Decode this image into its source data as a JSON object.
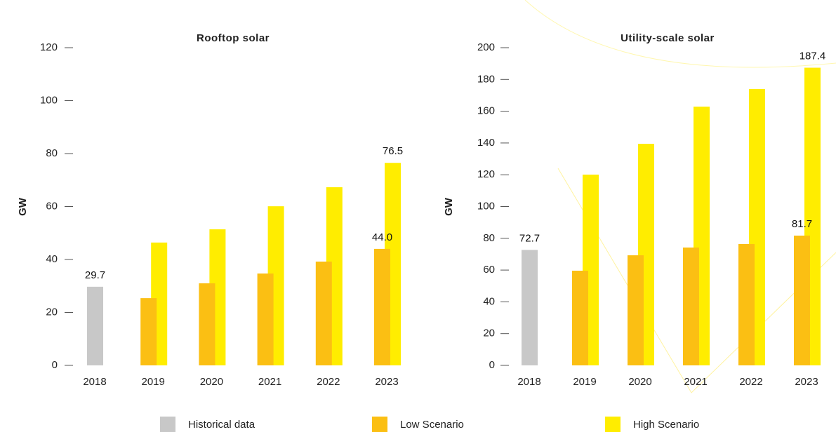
{
  "chart_data": [
    {
      "type": "bar",
      "title": "Rooftop solar",
      "ylabel": "GW",
      "categories": [
        "2018",
        "2019",
        "2020",
        "2021",
        "2022",
        "2023"
      ],
      "ylim": [
        0,
        120
      ],
      "yticks": [
        0,
        20,
        40,
        60,
        80,
        100,
        120
      ],
      "series": [
        {
          "name": "Historical data",
          "color": "#c8c8c8",
          "values": [
            29.7,
            null,
            null,
            null,
            null,
            null
          ],
          "value_labels": [
            "29.7",
            null,
            null,
            null,
            null,
            null
          ]
        },
        {
          "name": "Low Scenario",
          "color": "#fbbf13",
          "values": [
            null,
            25.4,
            31.0,
            34.7,
            39.2,
            44.0
          ],
          "value_labels": [
            null,
            null,
            null,
            null,
            null,
            "44.0"
          ]
        },
        {
          "name": "High Scenario",
          "color": "#ffed00",
          "values": [
            null,
            46.4,
            51.4,
            60.1,
            67.3,
            76.5
          ],
          "value_labels": [
            null,
            null,
            null,
            null,
            null,
            "76.5"
          ]
        }
      ]
    },
    {
      "type": "bar",
      "title": "Utility-scale solar",
      "ylabel": "GW",
      "categories": [
        "2018",
        "2019",
        "2020",
        "2021",
        "2022",
        "2023"
      ],
      "ylim": [
        0,
        200
      ],
      "yticks": [
        0,
        20,
        40,
        60,
        80,
        100,
        120,
        140,
        160,
        180,
        200
      ],
      "series": [
        {
          "name": "Historical data",
          "color": "#c8c8c8",
          "values": [
            72.7,
            null,
            null,
            null,
            null,
            null
          ],
          "value_labels": [
            "72.7",
            null,
            null,
            null,
            null,
            null
          ]
        },
        {
          "name": "Low Scenario",
          "color": "#fbbf13",
          "values": [
            null,
            59.6,
            69.3,
            74.2,
            76.4,
            81.7
          ],
          "value_labels": [
            null,
            null,
            null,
            null,
            null,
            "81.7"
          ]
        },
        {
          "name": "High Scenario",
          "color": "#ffed00",
          "values": [
            null,
            120.1,
            139.5,
            162.9,
            174.0,
            187.4
          ],
          "value_labels": [
            null,
            null,
            null,
            null,
            null,
            "187.4"
          ]
        }
      ]
    }
  ]
}
